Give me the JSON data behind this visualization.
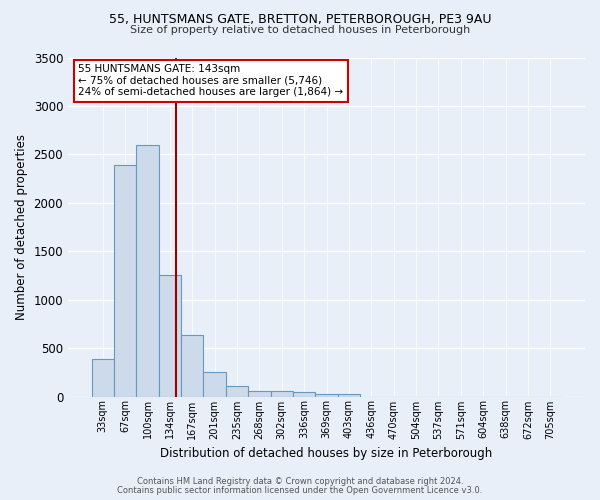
{
  "title_line1": "55, HUNTSMANS GATE, BRETTON, PETERBOROUGH, PE3 9AU",
  "title_line2": "Size of property relative to detached houses in Peterborough",
  "xlabel": "Distribution of detached houses by size in Peterborough",
  "ylabel": "Number of detached properties",
  "footer_line1": "Contains HM Land Registry data © Crown copyright and database right 2024.",
  "footer_line2": "Contains public sector information licensed under the Open Government Licence v3.0.",
  "categories": [
    "33sqm",
    "67sqm",
    "100sqm",
    "134sqm",
    "167sqm",
    "201sqm",
    "235sqm",
    "268sqm",
    "302sqm",
    "336sqm",
    "369sqm",
    "403sqm",
    "436sqm",
    "470sqm",
    "504sqm",
    "537sqm",
    "571sqm",
    "604sqm",
    "638sqm",
    "672sqm",
    "705sqm"
  ],
  "values": [
    390,
    2390,
    2600,
    1250,
    640,
    255,
    110,
    60,
    55,
    45,
    30,
    25,
    0,
    0,
    0,
    0,
    0,
    0,
    0,
    0,
    0
  ],
  "bar_color": "#ccdaeb",
  "bar_edge_color": "#6699bb",
  "background_color": "#e8eff8",
  "grid_color": "#ffffff",
  "vline_color": "#990000",
  "annotation_text": "55 HUNTSMANS GATE: 143sqm\n← 75% of detached houses are smaller (5,746)\n24% of semi-detached houses are larger (1,864) →",
  "annotation_box_color": "#ffffff",
  "annotation_box_edge": "#cc0000",
  "ylim": [
    0,
    3500
  ],
  "yticks": [
    0,
    500,
    1000,
    1500,
    2000,
    2500,
    3000,
    3500
  ],
  "vline_pos": 3.27
}
